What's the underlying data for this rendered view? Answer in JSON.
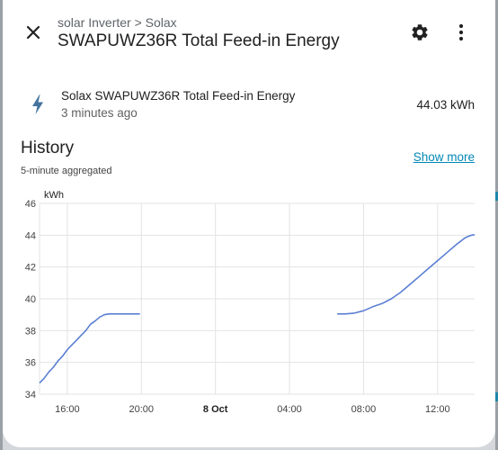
{
  "dialog": {
    "breadcrumb": "solar Inverter > Solax",
    "title": "SWAPUWZ36R Total Feed-in Energy"
  },
  "entity": {
    "icon": "lightning-bolt-icon",
    "name": "Solax SWAPUWZ36R Total Feed-in Energy",
    "last_changed": "3 minutes ago",
    "state": "44.03 kWh"
  },
  "history": {
    "title": "History",
    "subtitle": "5-minute aggregated",
    "show_more_label": "Show more"
  },
  "colors": {
    "accent": "#0288b4",
    "series": "#5b7fd4",
    "grid": "#e3e3e3"
  },
  "chart_data": {
    "type": "line",
    "ylabel": "kWh",
    "ylim": [
      34,
      46
    ],
    "yticks": [
      34,
      36,
      38,
      40,
      42,
      44,
      46
    ],
    "x_range": [
      "2024-10-07 14:30",
      "2024-10-08 14:00"
    ],
    "x_ticks": [
      {
        "label": "16:00",
        "t": "2024-10-07 16:00",
        "bold": false
      },
      {
        "label": "20:00",
        "t": "2024-10-07 20:00",
        "bold": false
      },
      {
        "label": "8 Oct",
        "t": "2024-10-08 00:00",
        "bold": true
      },
      {
        "label": "04:00",
        "t": "2024-10-08 04:00",
        "bold": false
      },
      {
        "label": "08:00",
        "t": "2024-10-08 08:00",
        "bold": false
      },
      {
        "label": "12:00",
        "t": "2024-10-08 12:00",
        "bold": false
      }
    ],
    "grid": true,
    "segments": [
      {
        "points": [
          [
            "2024-10-07 14:30",
            34.7
          ],
          [
            "2024-10-07 14:45",
            35.0
          ],
          [
            "2024-10-07 15:00",
            35.4
          ],
          [
            "2024-10-07 15:15",
            35.7
          ],
          [
            "2024-10-07 15:30",
            36.1
          ],
          [
            "2024-10-07 15:45",
            36.4
          ],
          [
            "2024-10-07 16:00",
            36.8
          ],
          [
            "2024-10-07 16:15",
            37.1
          ],
          [
            "2024-10-07 16:30",
            37.4
          ],
          [
            "2024-10-07 16:45",
            37.7
          ],
          [
            "2024-10-07 17:00",
            38.0
          ],
          [
            "2024-10-07 17:15",
            38.4
          ],
          [
            "2024-10-07 17:30",
            38.6
          ],
          [
            "2024-10-07 17:45",
            38.85
          ],
          [
            "2024-10-07 18:00",
            39.0
          ],
          [
            "2024-10-07 18:15",
            39.05
          ],
          [
            "2024-10-07 18:30",
            39.05
          ],
          [
            "2024-10-07 19:00",
            39.05
          ],
          [
            "2024-10-07 19:30",
            39.05
          ],
          [
            "2024-10-07 19:55",
            39.05
          ]
        ]
      },
      {
        "points": [
          [
            "2024-10-08 06:35",
            39.05
          ],
          [
            "2024-10-08 07:00",
            39.05
          ],
          [
            "2024-10-08 07:30",
            39.1
          ],
          [
            "2024-10-08 08:00",
            39.25
          ],
          [
            "2024-10-08 08:30",
            39.5
          ],
          [
            "2024-10-08 09:00",
            39.7
          ],
          [
            "2024-10-08 09:30",
            40.0
          ],
          [
            "2024-10-08 10:00",
            40.4
          ],
          [
            "2024-10-08 10:30",
            40.9
          ],
          [
            "2024-10-08 11:00",
            41.4
          ],
          [
            "2024-10-08 11:30",
            41.9
          ],
          [
            "2024-10-08 12:00",
            42.4
          ],
          [
            "2024-10-08 12:30",
            42.9
          ],
          [
            "2024-10-08 13:00",
            43.4
          ],
          [
            "2024-10-08 13:30",
            43.85
          ],
          [
            "2024-10-08 13:50",
            44.0
          ],
          [
            "2024-10-08 14:00",
            44.03
          ]
        ]
      }
    ]
  }
}
